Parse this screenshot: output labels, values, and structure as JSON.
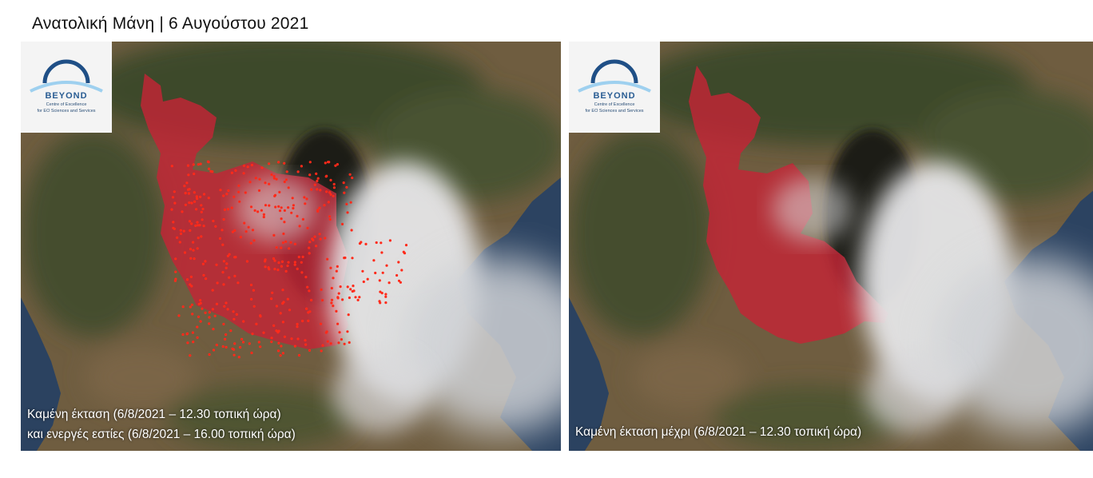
{
  "title": "Ανατολική Μάνη | 6 Αυγούστου 2021",
  "logo": {
    "name": "BEYOND",
    "line1": "Centre of Excellence",
    "line2": "for EO Sciences and Services",
    "colors": {
      "arc": "#1f4f86",
      "swoosh": "#9ed0ef"
    }
  },
  "panels": [
    {
      "id": "left",
      "caption_line1": "Καμένη έκταση (6/8/2021 – 12.30 τοπική ώρα)",
      "caption_line2": "και ενεργές εστίες (6/8/2021 – 16.00 τοπική ώρα)",
      "layers": [
        "burned-area",
        "active-fire-points",
        "smoke"
      ]
    },
    {
      "id": "right",
      "caption_line1": "Καμένη έκταση μέχρι (6/8/2021 – 12.30 τοπική ώρα)",
      "layers": [
        "burned-area",
        "smoke"
      ]
    }
  ],
  "colors": {
    "burned_area": "#c9283a",
    "active_fire": "#ff2a1a",
    "sea": "#2b3f5c",
    "land": "#6e5c3f",
    "vegetation": "#3f4a2a",
    "smoke": "#e8e8ea"
  }
}
